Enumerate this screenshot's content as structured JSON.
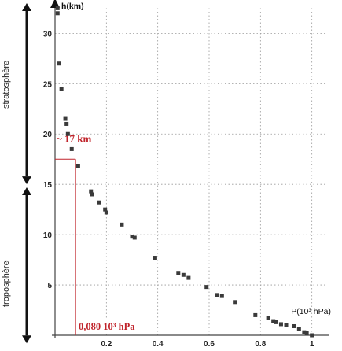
{
  "chart_data": {
    "type": "scatter",
    "ylabel": "h(km)",
    "xlabel": "P(10³ hPa)",
    "xlim": [
      0,
      1.05
    ],
    "ylim": [
      0,
      33
    ],
    "x_ticks": [
      0.2,
      0.4,
      0.6,
      0.8,
      1
    ],
    "x_tick_labels": [
      "0.2",
      "0.4",
      "0.6",
      "0.8",
      "1"
    ],
    "y_ticks": [
      5,
      10,
      15,
      20,
      25,
      30
    ],
    "y_tick_labels": [
      "5",
      "10",
      "15",
      "20",
      "25",
      "30"
    ],
    "grid": true,
    "series": [
      {
        "color": "#3a3a3a",
        "points": [
          [
            0.01,
            32.5
          ],
          [
            0.01,
            32.0
          ],
          [
            0.015,
            27.0
          ],
          [
            0.025,
            24.5
          ],
          [
            0.04,
            21.5
          ],
          [
            0.045,
            21.0
          ],
          [
            0.05,
            20.0
          ],
          [
            0.065,
            18.5
          ],
          [
            0.09,
            16.8
          ],
          [
            0.14,
            14.3
          ],
          [
            0.145,
            14.0
          ],
          [
            0.17,
            13.2
          ],
          [
            0.195,
            12.5
          ],
          [
            0.2,
            12.2
          ],
          [
            0.26,
            11.0
          ],
          [
            0.3,
            9.8
          ],
          [
            0.31,
            9.7
          ],
          [
            0.39,
            7.7
          ],
          [
            0.48,
            6.2
          ],
          [
            0.5,
            6.0
          ],
          [
            0.52,
            5.7
          ],
          [
            0.59,
            4.8
          ],
          [
            0.63,
            4.0
          ],
          [
            0.65,
            3.9
          ],
          [
            0.7,
            3.3
          ],
          [
            0.78,
            2.0
          ],
          [
            0.83,
            1.7
          ],
          [
            0.85,
            1.4
          ],
          [
            0.86,
            1.3
          ],
          [
            0.88,
            1.1
          ],
          [
            0.9,
            1.0
          ],
          [
            0.93,
            0.9
          ],
          [
            0.95,
            0.6
          ],
          [
            0.97,
            0.3
          ],
          [
            0.98,
            0.2
          ],
          [
            1.0,
            0.0
          ]
        ]
      }
    ],
    "annotations": {
      "tropopause_altitude": "~ 17 km",
      "tropopause_pressure": "0,080 10³ hPa",
      "tropopause_h": 17.5,
      "tropopause_p": 0.08,
      "color": "#c0242b"
    },
    "layers": [
      {
        "label": "stratosphère",
        "from": 15,
        "to": 33
      },
      {
        "label": "troposphère",
        "from": 0,
        "to": 15
      }
    ]
  }
}
